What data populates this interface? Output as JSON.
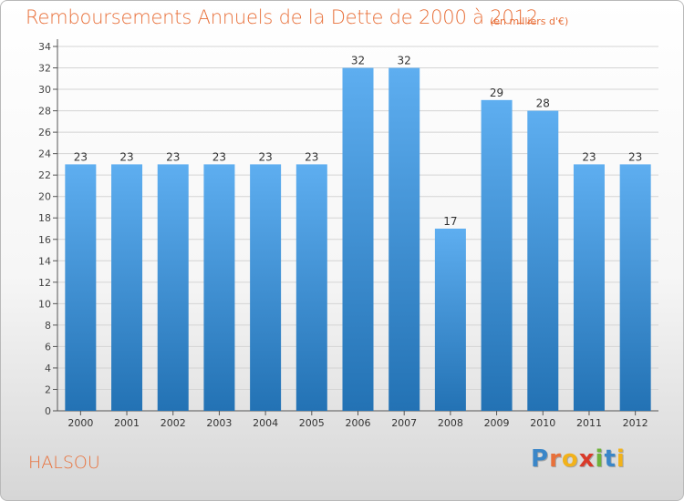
{
  "header": {
    "title": "Remboursements Annuels de la Dette de 2000 à 2012",
    "subtitle": "(en milliers d'€)"
  },
  "footer": {
    "town": "HALSOU",
    "logo_text": "Proxiti",
    "logo_letters": [
      {
        "char": "P",
        "color": "#3a86c8"
      },
      {
        "char": "r",
        "color": "#e8703a"
      },
      {
        "char": "o",
        "color": "#f2b21a"
      },
      {
        "char": "x",
        "color": "#d93a2a"
      },
      {
        "char": "i",
        "color": "#6fb33a"
      },
      {
        "char": "t",
        "color": "#3a86c8"
      },
      {
        "char": "i",
        "color": "#f2b21a"
      }
    ]
  },
  "colors": {
    "bar_top": "#5eaef0",
    "bar_bottom": "#2372b4",
    "title": "#e8703a",
    "grid": "#d4d4d4"
  },
  "chart_data": {
    "type": "bar",
    "categories": [
      "2000",
      "2001",
      "2002",
      "2003",
      "2004",
      "2005",
      "2006",
      "2007",
      "2008",
      "2009",
      "2010",
      "2011",
      "2012"
    ],
    "values": [
      23,
      23,
      23,
      23,
      23,
      23,
      32,
      32,
      17,
      29,
      28,
      23,
      23
    ],
    "data_labels": [
      "23",
      "23",
      "23",
      "23",
      "23",
      "23",
      "32",
      "32",
      "17",
      "29",
      "28",
      "23",
      "23"
    ],
    "yticks": [
      "0",
      "2",
      "4",
      "6",
      "8",
      "10",
      "12",
      "14",
      "16",
      "18",
      "20",
      "22",
      "24",
      "26",
      "28",
      "30",
      "32",
      "34"
    ],
    "ylim": [
      0,
      34
    ],
    "grid": true
  }
}
